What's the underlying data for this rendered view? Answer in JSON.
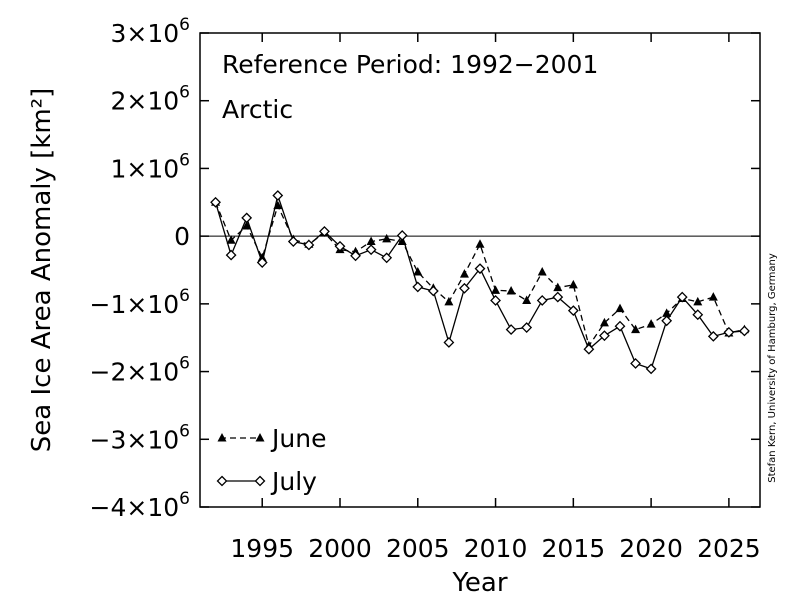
{
  "chart_data": {
    "type": "line",
    "xlabel": "Year",
    "ylabel": "Sea Ice Area Anomaly [km²]",
    "xlim": [
      1991,
      2027
    ],
    "ylim": [
      -4000000,
      3000000
    ],
    "xticks": [
      1995,
      2000,
      2005,
      2010,
      2015,
      2020,
      2025
    ],
    "xtick_labels": [
      "1995",
      "2000",
      "2005",
      "2010",
      "2015",
      "2020",
      "2025"
    ],
    "yticks": [
      3000000,
      2000000,
      1000000,
      0,
      -1000000,
      -2000000,
      -3000000,
      -4000000
    ],
    "ytick_labels": [
      {
        "mant": "3×10",
        "exp": "6"
      },
      {
        "mant": "2×10",
        "exp": "6"
      },
      {
        "mant": "1×10",
        "exp": "6"
      },
      {
        "mant": "0",
        "exp": ""
      },
      {
        "mant": "−1×10",
        "exp": "6"
      },
      {
        "mant": "−2×10",
        "exp": "6"
      },
      {
        "mant": "−3×10",
        "exp": "6"
      },
      {
        "mant": "−4×10",
        "exp": "6"
      }
    ],
    "zero_line": true,
    "legend_position": "bottom-left",
    "annotations": [
      "Reference Period: 1992−2001",
      "Arctic"
    ],
    "credit": "Stefan Kern, University of Hamburg, Germany",
    "x": [
      1992,
      1993,
      1994,
      1995,
      1996,
      1997,
      1998,
      1999,
      2000,
      2001,
      2002,
      2003,
      2004,
      2005,
      2006,
      2007,
      2008,
      2009,
      2010,
      2011,
      2012,
      2013,
      2014,
      2015,
      2016,
      2017,
      2018,
      2019,
      2020,
      2021,
      2022,
      2023,
      2024,
      2025,
      2026
    ],
    "series": [
      {
        "name": "June",
        "style": "dashed",
        "marker": "triangle",
        "values": [
          500000,
          -60000,
          150000,
          -320000,
          450000,
          -50000,
          -120000,
          50000,
          -200000,
          -230000,
          -80000,
          -40000,
          -80000,
          -530000,
          -770000,
          -970000,
          -560000,
          -120000,
          -800000,
          -810000,
          -950000,
          -530000,
          -760000,
          -720000,
          -1620000,
          -1280000,
          -1070000,
          -1380000,
          -1300000,
          -1140000,
          -920000,
          -970000,
          -900000,
          -1430000,
          -1380000
        ]
      },
      {
        "name": "July",
        "style": "solid",
        "marker": "diamond",
        "values": [
          500000,
          -280000,
          270000,
          -390000,
          600000,
          -80000,
          -130000,
          70000,
          -150000,
          -290000,
          -200000,
          -320000,
          10000,
          -750000,
          -810000,
          -1570000,
          -770000,
          -480000,
          -950000,
          -1380000,
          -1350000,
          -950000,
          -900000,
          -1100000,
          -1670000,
          -1470000,
          -1330000,
          -1880000,
          -1960000,
          -1250000,
          -900000,
          -1160000,
          -1480000,
          -1420000,
          -1400000
        ]
      }
    ]
  }
}
